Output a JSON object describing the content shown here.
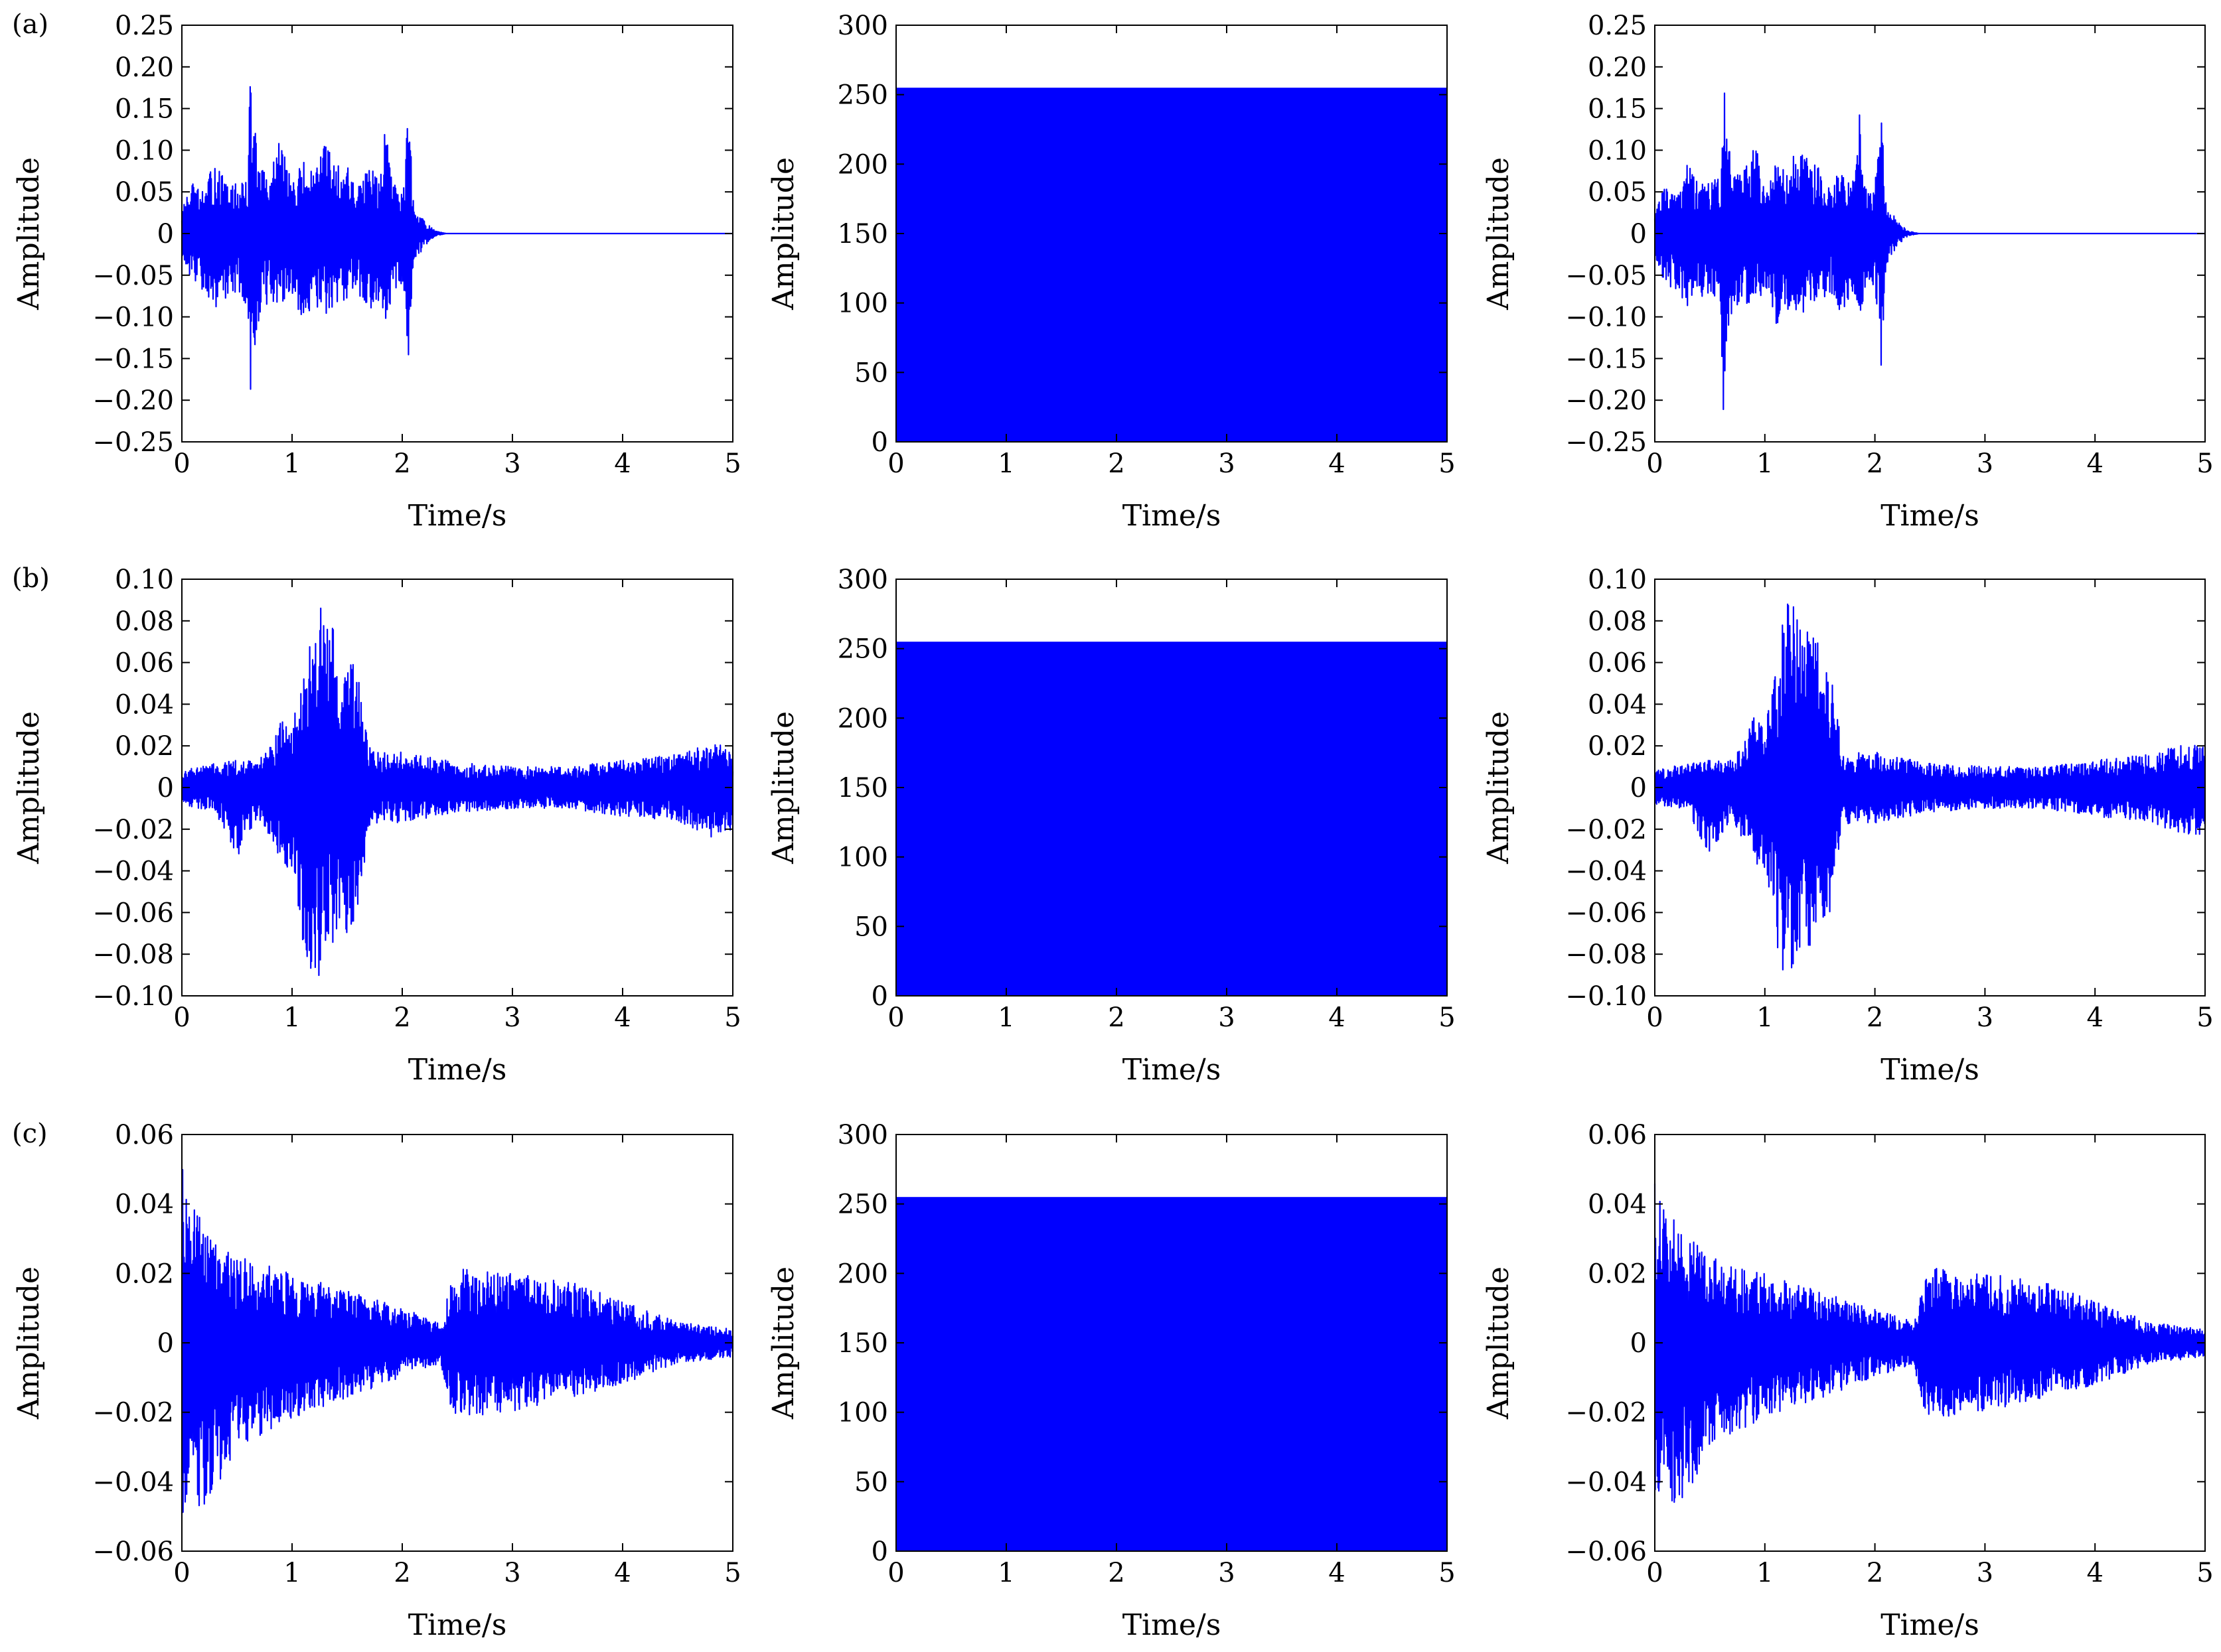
{
  "figure": {
    "row_labels": [
      "(a)",
      "(b)",
      "(c)"
    ],
    "line_color": "#0000ff"
  },
  "chart_data": [
    {
      "id": "a1",
      "row": 0,
      "col": 0,
      "type": "line",
      "title": "",
      "xlabel": "Time/s",
      "ylabel": "Amplitude",
      "xlim": [
        0,
        5
      ],
      "ylim": [
        -0.25,
        0.25
      ],
      "xticks": [
        "0",
        "1",
        "2",
        "3",
        "4",
        "5"
      ],
      "yticks": [
        "−0.25",
        "−0.20",
        "−0.15",
        "−0.10",
        "−0.05",
        "0",
        "0.05",
        "0.10",
        "0.15",
        "0.20",
        "0.25"
      ],
      "grid": false,
      "series": [
        {
          "x": [
            0,
            0.1,
            0.2,
            0.3,
            0.4,
            0.5,
            0.6,
            0.62,
            0.7,
            0.8,
            0.9,
            1.0,
            1.1,
            1.2,
            1.3,
            1.4,
            1.5,
            1.6,
            1.7,
            1.8,
            1.86,
            1.9,
            2.0,
            2.06,
            2.1,
            2.2,
            2.3,
            2.4,
            3,
            4,
            5
          ],
          "upper": [
            0.03,
            0.06,
            0.05,
            0.09,
            0.06,
            0.06,
            0.07,
            0.2,
            0.08,
            0.07,
            0.12,
            0.06,
            0.09,
            0.07,
            0.11,
            0.09,
            0.08,
            0.06,
            0.08,
            0.07,
            0.15,
            0.07,
            0.06,
            0.155,
            0.04,
            0.015,
            0.003,
            0,
            0,
            0,
            0
          ],
          "lower": [
            -0.04,
            -0.06,
            -0.07,
            -0.09,
            -0.08,
            -0.07,
            -0.09,
            -0.225,
            -0.1,
            -0.08,
            -0.1,
            -0.07,
            -0.12,
            -0.09,
            -0.1,
            -0.09,
            -0.08,
            -0.07,
            -0.1,
            -0.08,
            -0.11,
            -0.08,
            -0.07,
            -0.17,
            -0.04,
            -0.015,
            -0.003,
            0,
            0,
            0,
            0
          ]
        }
      ]
    },
    {
      "id": "a2",
      "row": 0,
      "col": 1,
      "type": "area",
      "title": "",
      "xlabel": "Time/s",
      "ylabel": "Amplitude",
      "xlim": [
        0,
        5
      ],
      "ylim": [
        0,
        300
      ],
      "xticks": [
        "0",
        "1",
        "2",
        "3",
        "4",
        "5"
      ],
      "yticks": [
        "0",
        "50",
        "100",
        "150",
        "200",
        "250",
        "300"
      ],
      "grid": false,
      "series": [
        {
          "x": [
            0,
            5
          ],
          "upper": [
            255,
            255
          ],
          "lower": [
            0,
            0
          ]
        }
      ]
    },
    {
      "id": "a3",
      "row": 0,
      "col": 2,
      "type": "line",
      "title": "",
      "xlabel": "Time/s",
      "ylabel": "Amplitude",
      "xlim": [
        0,
        5
      ],
      "ylim": [
        -0.25,
        0.25
      ],
      "xticks": [
        "0",
        "1",
        "2",
        "3",
        "4",
        "5"
      ],
      "yticks": [
        "−0.25",
        "−0.20",
        "−0.15",
        "−0.10",
        "−0.05",
        "0",
        "0.05",
        "0.10",
        "0.15",
        "0.20",
        "0.25"
      ],
      "grid": false,
      "series": [
        {
          "x": [
            0,
            0.1,
            0.2,
            0.3,
            0.4,
            0.5,
            0.6,
            0.62,
            0.7,
            0.8,
            0.9,
            1.0,
            1.1,
            1.2,
            1.3,
            1.4,
            1.5,
            1.6,
            1.7,
            1.8,
            1.86,
            1.9,
            2.0,
            2.06,
            2.1,
            2.2,
            2.3,
            2.4,
            3,
            4,
            5
          ],
          "upper": [
            0.03,
            0.06,
            0.05,
            0.09,
            0.06,
            0.06,
            0.07,
            0.2,
            0.08,
            0.07,
            0.12,
            0.06,
            0.09,
            0.07,
            0.11,
            0.09,
            0.08,
            0.06,
            0.08,
            0.07,
            0.15,
            0.07,
            0.06,
            0.155,
            0.04,
            0.015,
            0.003,
            0,
            0,
            0,
            0
          ],
          "lower": [
            -0.04,
            -0.06,
            -0.07,
            -0.09,
            -0.08,
            -0.07,
            -0.09,
            -0.225,
            -0.1,
            -0.08,
            -0.1,
            -0.07,
            -0.12,
            -0.09,
            -0.1,
            -0.09,
            -0.08,
            -0.07,
            -0.1,
            -0.08,
            -0.11,
            -0.08,
            -0.07,
            -0.17,
            -0.04,
            -0.015,
            -0.003,
            0,
            0,
            0,
            0
          ]
        }
      ]
    },
    {
      "id": "b1",
      "row": 1,
      "col": 0,
      "type": "line",
      "title": "",
      "xlabel": "Time/s",
      "ylabel": "Amplitude",
      "xlim": [
        0,
        5
      ],
      "ylim": [
        -0.1,
        0.1
      ],
      "xticks": [
        "0",
        "1",
        "2",
        "3",
        "4",
        "5"
      ],
      "yticks": [
        "−0.10",
        "−0.08",
        "−0.06",
        "−0.04",
        "−0.02",
        "0",
        "0.02",
        "0.04",
        "0.06",
        "0.08",
        "0.10"
      ],
      "grid": false,
      "series": [
        {
          "x": [
            0,
            0.3,
            0.5,
            0.7,
            0.8,
            0.9,
            1.0,
            1.1,
            1.2,
            1.3,
            1.4,
            1.5,
            1.6,
            1.7,
            1.8,
            2.0,
            2.5,
            3.0,
            3.5,
            4.0,
            4.5,
            4.8,
            5.0
          ],
          "upper": [
            0.008,
            0.012,
            0.013,
            0.014,
            0.02,
            0.034,
            0.03,
            0.055,
            0.098,
            0.08,
            0.075,
            0.07,
            0.055,
            0.02,
            0.017,
            0.017,
            0.012,
            0.01,
            0.01,
            0.013,
            0.016,
            0.021,
            0.02
          ],
          "lower": [
            -0.008,
            -0.012,
            -0.034,
            -0.015,
            -0.025,
            -0.036,
            -0.04,
            -0.075,
            -0.098,
            -0.08,
            -0.078,
            -0.07,
            -0.06,
            -0.02,
            -0.017,
            -0.017,
            -0.012,
            -0.01,
            -0.01,
            -0.014,
            -0.016,
            -0.024,
            -0.022
          ]
        }
      ]
    },
    {
      "id": "b2",
      "row": 1,
      "col": 1,
      "type": "area",
      "title": "",
      "xlabel": "Time/s",
      "ylabel": "Amplitude",
      "xlim": [
        0,
        5
      ],
      "ylim": [
        0,
        300
      ],
      "xticks": [
        "0",
        "1",
        "2",
        "3",
        "4",
        "5"
      ],
      "yticks": [
        "0",
        "50",
        "100",
        "150",
        "200",
        "250",
        "300"
      ],
      "grid": false,
      "series": [
        {
          "x": [
            0,
            5
          ],
          "upper": [
            255,
            255
          ],
          "lower": [
            0,
            0
          ]
        }
      ]
    },
    {
      "id": "b3",
      "row": 1,
      "col": 2,
      "type": "line",
      "title": "",
      "xlabel": "Time/s",
      "ylabel": "Amplitude",
      "xlim": [
        0,
        5
      ],
      "ylim": [
        -0.1,
        0.1
      ],
      "xticks": [
        "0",
        "1",
        "2",
        "3",
        "4",
        "5"
      ],
      "yticks": [
        "−0.10",
        "−0.08",
        "−0.06",
        "−0.04",
        "−0.02",
        "0",
        "0.02",
        "0.04",
        "0.06",
        "0.08",
        "0.10"
      ],
      "grid": false,
      "series": [
        {
          "x": [
            0,
            0.3,
            0.5,
            0.7,
            0.8,
            0.9,
            1.0,
            1.1,
            1.2,
            1.3,
            1.4,
            1.5,
            1.6,
            1.7,
            1.8,
            2.0,
            2.5,
            3.0,
            3.5,
            4.0,
            4.5,
            4.8,
            5.0
          ],
          "upper": [
            0.008,
            0.012,
            0.013,
            0.014,
            0.02,
            0.034,
            0.03,
            0.055,
            0.098,
            0.08,
            0.075,
            0.07,
            0.055,
            0.02,
            0.017,
            0.017,
            0.012,
            0.01,
            0.01,
            0.013,
            0.016,
            0.021,
            0.02
          ],
          "lower": [
            -0.008,
            -0.012,
            -0.034,
            -0.015,
            -0.025,
            -0.036,
            -0.04,
            -0.075,
            -0.098,
            -0.08,
            -0.078,
            -0.07,
            -0.06,
            -0.02,
            -0.017,
            -0.017,
            -0.012,
            -0.01,
            -0.01,
            -0.014,
            -0.016,
            -0.024,
            -0.022
          ]
        }
      ]
    },
    {
      "id": "c1",
      "row": 2,
      "col": 0,
      "type": "line",
      "title": "",
      "xlabel": "Time/s",
      "ylabel": "Amplitude",
      "xlim": [
        0,
        5
      ],
      "ylim": [
        -0.06,
        0.06
      ],
      "xticks": [
        "0",
        "1",
        "2",
        "3",
        "4",
        "5"
      ],
      "yticks": [
        "−0.06",
        "−0.04",
        "−0.02",
        "0",
        "0.02",
        "0.04",
        "0.06"
      ],
      "grid": false,
      "series": [
        {
          "x": [
            0,
            0.05,
            0.2,
            0.5,
            1.0,
            1.5,
            2.0,
            2.35,
            2.45,
            2.55,
            3.0,
            3.5,
            4.0,
            4.5,
            5.0
          ],
          "upper": [
            0.053,
            0.042,
            0.034,
            0.025,
            0.02,
            0.015,
            0.01,
            0.006,
            0.018,
            0.022,
            0.02,
            0.018,
            0.012,
            0.006,
            0.004
          ],
          "lower": [
            -0.052,
            -0.045,
            -0.05,
            -0.03,
            -0.022,
            -0.016,
            -0.01,
            -0.006,
            -0.02,
            -0.022,
            -0.02,
            -0.016,
            -0.012,
            -0.006,
            -0.004
          ]
        }
      ]
    },
    {
      "id": "c2",
      "row": 2,
      "col": 1,
      "type": "area",
      "title": "",
      "xlabel": "Time/s",
      "ylabel": "Amplitude",
      "xlim": [
        0,
        5
      ],
      "ylim": [
        0,
        300
      ],
      "xticks": [
        "0",
        "1",
        "2",
        "3",
        "4",
        "5"
      ],
      "yticks": [
        "0",
        "50",
        "100",
        "150",
        "200",
        "250",
        "300"
      ],
      "grid": false,
      "series": [
        {
          "x": [
            0,
            5
          ],
          "upper": [
            255,
            255
          ],
          "lower": [
            0,
            0
          ]
        }
      ]
    },
    {
      "id": "c3",
      "row": 2,
      "col": 2,
      "type": "line",
      "title": "",
      "xlabel": "Time/s",
      "ylabel": "Amplitude",
      "xlim": [
        0,
        5
      ],
      "ylim": [
        -0.06,
        0.06
      ],
      "xticks": [
        "0",
        "1",
        "2",
        "3",
        "4",
        "5"
      ],
      "yticks": [
        "−0.06",
        "−0.04",
        "−0.02",
        "0",
        "0.02",
        "0.04",
        "0.06"
      ],
      "grid": false,
      "series": [
        {
          "x": [
            0,
            0.05,
            0.2,
            0.5,
            1.0,
            1.5,
            2.0,
            2.35,
            2.45,
            2.55,
            3.0,
            3.5,
            4.0,
            4.5,
            5.0
          ],
          "upper": [
            0.053,
            0.042,
            0.034,
            0.025,
            0.02,
            0.015,
            0.01,
            0.006,
            0.018,
            0.022,
            0.02,
            0.018,
            0.012,
            0.006,
            0.004
          ],
          "lower": [
            -0.052,
            -0.045,
            -0.05,
            -0.03,
            -0.022,
            -0.016,
            -0.01,
            -0.006,
            -0.02,
            -0.022,
            -0.02,
            -0.016,
            -0.012,
            -0.006,
            -0.004
          ]
        }
      ]
    }
  ]
}
